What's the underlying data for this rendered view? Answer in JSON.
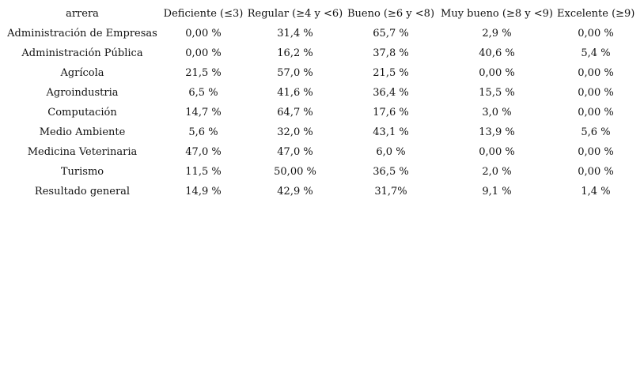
{
  "table": {
    "headers": [
      "arrera",
      "Deficiente (≤3)",
      "Regular (≥4 y <6)",
      "Bueno (≥6 y <8)",
      "Muy bueno (≥8 y <9)",
      "Excelente (≥9)"
    ],
    "rows": [
      [
        "Administración de Empresas",
        "0,00 %",
        "31,4 %",
        "65,7 %",
        "2,9 %",
        "0,00 %"
      ],
      [
        "Administración Pública",
        "0,00 %",
        "16,2 %",
        "37,8 %",
        "40,6 %",
        "5,4 %"
      ],
      [
        "Agrícola",
        "21,5 %",
        "57,0 %",
        "21,5 %",
        "0,00 %",
        "0,00 %"
      ],
      [
        "Agroindustria",
        "6,5 %",
        "41,6 %",
        "36,4 %",
        "15,5 %",
        "0,00 %"
      ],
      [
        "Computación",
        "14,7 %",
        "64,7 %",
        "17,6 %",
        "3,0 %",
        "0,00 %"
      ],
      [
        "Medio Ambiente",
        "5,6 %",
        "32,0 %",
        "43,1 %",
        "13,9 %",
        "5,6 %"
      ],
      [
        "Medicina Veterinaria",
        "47,0 %",
        "47,0 %",
        "6,0 %",
        "0,00 %",
        "0,00 %"
      ],
      [
        "Turismo",
        "11,5 %",
        "50,00 %",
        "36,5 %",
        "2,0 %",
        "0,00 %"
      ],
      [
        "Resultado general",
        "14,9 %",
        "42,9 %",
        "31,7%",
        "9,1 %",
        "1,4 %"
      ]
    ]
  }
}
